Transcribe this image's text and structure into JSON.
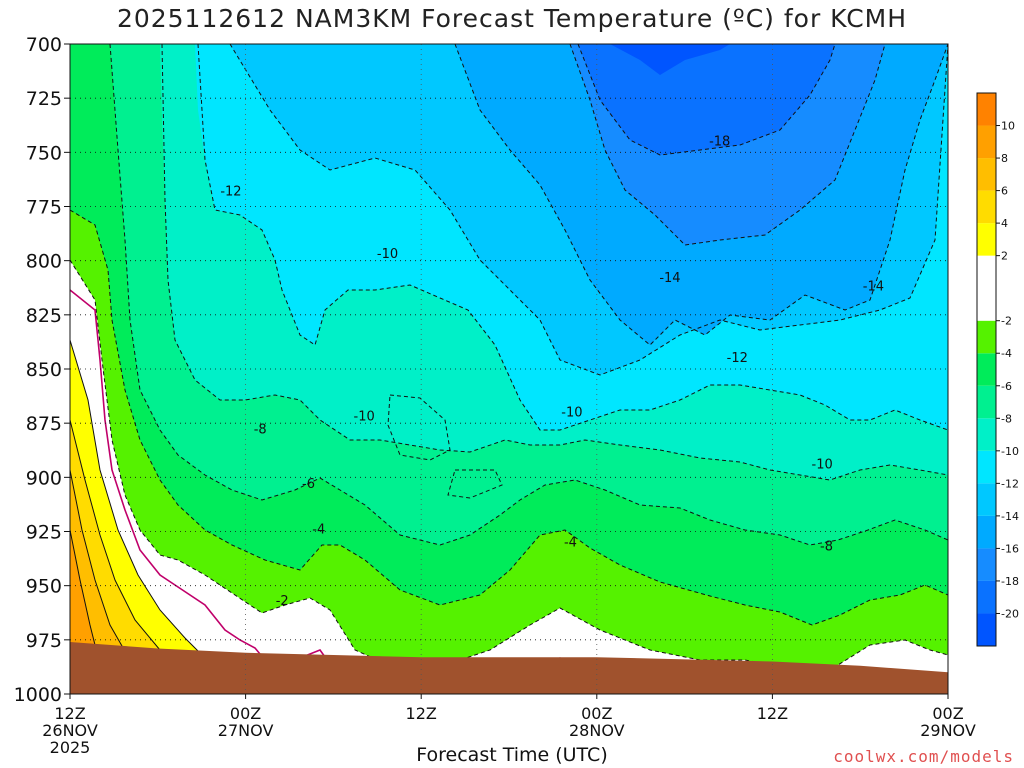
{
  "chart_data": {
    "type": "heatmap",
    "title": "2025112612 NAM3KM Forecast Temperature (ºC) for KCMH",
    "xlabel": "Forecast Time (UTC)",
    "credit": "coolwx.com/models",
    "x_range_hours": [
      0,
      60
    ],
    "y_range_hPa": [
      700,
      1000
    ],
    "y_ticks": [
      700,
      725,
      750,
      775,
      800,
      825,
      850,
      875,
      900,
      925,
      950,
      975,
      1000
    ],
    "x_ticks": [
      {
        "hour": 0,
        "lines": [
          "12Z",
          "26NOV",
          "2025"
        ]
      },
      {
        "hour": 12,
        "lines": [
          "00Z",
          "27NOV"
        ]
      },
      {
        "hour": 24,
        "lines": [
          "12Z"
        ]
      },
      {
        "hour": 36,
        "lines": [
          "00Z",
          "28NOV"
        ]
      },
      {
        "hour": 48,
        "lines": [
          "12Z"
        ]
      },
      {
        "hour": 60,
        "lines": [
          "00Z",
          "29NOV"
        ]
      }
    ],
    "grid": true,
    "legend": "right",
    "colorbar": [
      {
        "low": -22,
        "high": -20,
        "color": "#0055ff"
      },
      {
        "low": -20,
        "high": -18,
        "color": "#0a72ff"
      },
      {
        "low": -18,
        "high": -16,
        "color": "#168cff"
      },
      {
        "low": -16,
        "high": -14,
        "color": "#00aaff"
      },
      {
        "low": -14,
        "high": -12,
        "color": "#00c8ff"
      },
      {
        "low": -12,
        "high": -10,
        "color": "#00e6ff"
      },
      {
        "low": -10,
        "high": -8,
        "color": "#00f0c8"
      },
      {
        "low": -8,
        "high": -6,
        "color": "#00f090"
      },
      {
        "low": -6,
        "high": -4,
        "color": "#00ec5a"
      },
      {
        "low": -4,
        "high": -2,
        "color": "#55f200"
      },
      {
        "low": -2,
        "high": 2,
        "color": "#ffffff"
      },
      {
        "low": 2,
        "high": 4,
        "color": "#ffff00"
      },
      {
        "low": 4,
        "high": 6,
        "color": "#ffdc00"
      },
      {
        "low": 6,
        "high": 8,
        "color": "#ffbe00"
      },
      {
        "low": 8,
        "high": 10,
        "color": "#ffa000"
      },
      {
        "low": 10,
        "high": 12,
        "color": "#ff8200"
      }
    ],
    "colorbar_labels": [
      10,
      8,
      6,
      4,
      2,
      -2,
      -4,
      -6,
      -8,
      -10,
      -12,
      -14,
      -16,
      -18,
      -20
    ],
    "ground_color": "#a0522d",
    "ground_surface_pressure": [
      {
        "hour": 0,
        "p": 976
      },
      {
        "hour": 6,
        "p": 979
      },
      {
        "hour": 12,
        "p": 981
      },
      {
        "hour": 18,
        "p": 982
      },
      {
        "hour": 24,
        "p": 983
      },
      {
        "hour": 36,
        "p": 983
      },
      {
        "hour": 48,
        "p": 985
      },
      {
        "hour": 54,
        "p": 987
      },
      {
        "hour": 60,
        "p": 990
      }
    ],
    "contour_labels": [
      {
        "value": "-18",
        "hour": 44.4,
        "p": 745
      },
      {
        "value": "-14",
        "hour": 41.0,
        "p": 808
      },
      {
        "value": "-14",
        "hour": 54.9,
        "p": 812
      },
      {
        "value": "-12",
        "hour": 11.0,
        "p": 768
      },
      {
        "value": "-12",
        "hour": 45.6,
        "p": 845
      },
      {
        "value": "-10",
        "hour": 21.7,
        "p": 797
      },
      {
        "value": "-10",
        "hour": 20.1,
        "p": 872
      },
      {
        "value": "-10",
        "hour": 34.3,
        "p": 870
      },
      {
        "value": "-10",
        "hour": 51.4,
        "p": 894
      },
      {
        "value": "-8",
        "hour": 13.0,
        "p": 878
      },
      {
        "value": "-8",
        "hour": 51.7,
        "p": 932
      },
      {
        "value": "-6",
        "hour": 16.3,
        "p": 903
      },
      {
        "value": "-4",
        "hour": 17.0,
        "p": 924
      },
      {
        "value": "-4",
        "hour": 34.2,
        "p": 930
      },
      {
        "value": "-2",
        "hour": 14.5,
        "p": 957
      }
    ]
  }
}
